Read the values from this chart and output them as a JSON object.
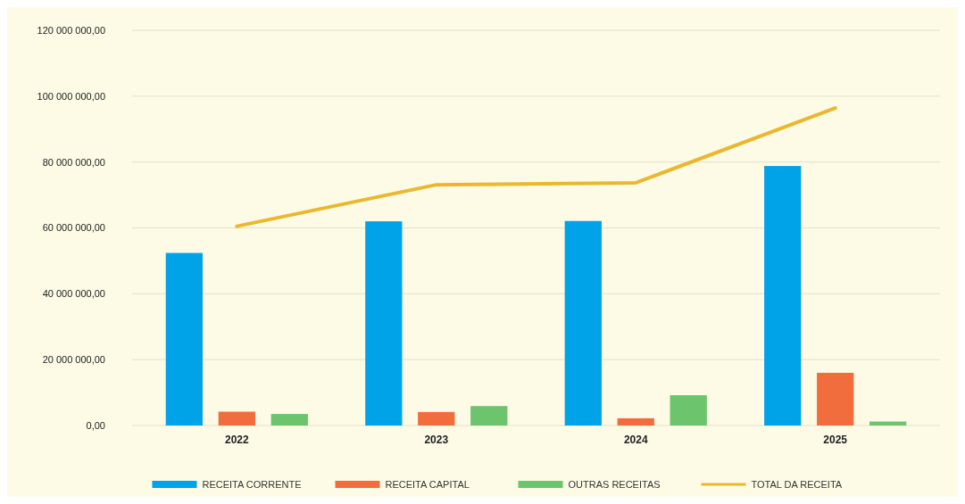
{
  "chart_data": {
    "type": "bar",
    "categories": [
      "2022",
      "2023",
      "2024",
      "2025"
    ],
    "series": [
      {
        "name": "RECEITA CORRENTE",
        "color": "#00a2e8",
        "values": [
          52400000,
          62000000,
          62100000,
          78800000
        ]
      },
      {
        "name": "RECEITA CAPITAL",
        "color": "#f26d3d",
        "values": [
          4200000,
          4100000,
          2200000,
          16000000
        ]
      },
      {
        "name": "OUTRAS RECEITAS",
        "color": "#6cc46c",
        "values": [
          3500000,
          5900000,
          9200000,
          1200000
        ]
      },
      {
        "name": "TOTAL DA RECEITA",
        "type": "line",
        "color": "#eab830",
        "values": [
          60500000,
          73100000,
          73700000,
          96400000
        ]
      }
    ],
    "ylim": [
      0,
      120000000
    ],
    "yticks": [
      {
        "value": 0,
        "label": "0,00"
      },
      {
        "value": 20000000,
        "label": "20 000 000,00"
      },
      {
        "value": 40000000,
        "label": "40 000 000,00"
      },
      {
        "value": 60000000,
        "label": "60 000 000,00"
      },
      {
        "value": 80000000,
        "label": "80 000 000,00"
      },
      {
        "value": 100000000,
        "label": "100 000 000,00"
      },
      {
        "value": 120000000,
        "label": "120 000 000,00"
      }
    ],
    "grid": "y",
    "legend": "bottom"
  }
}
